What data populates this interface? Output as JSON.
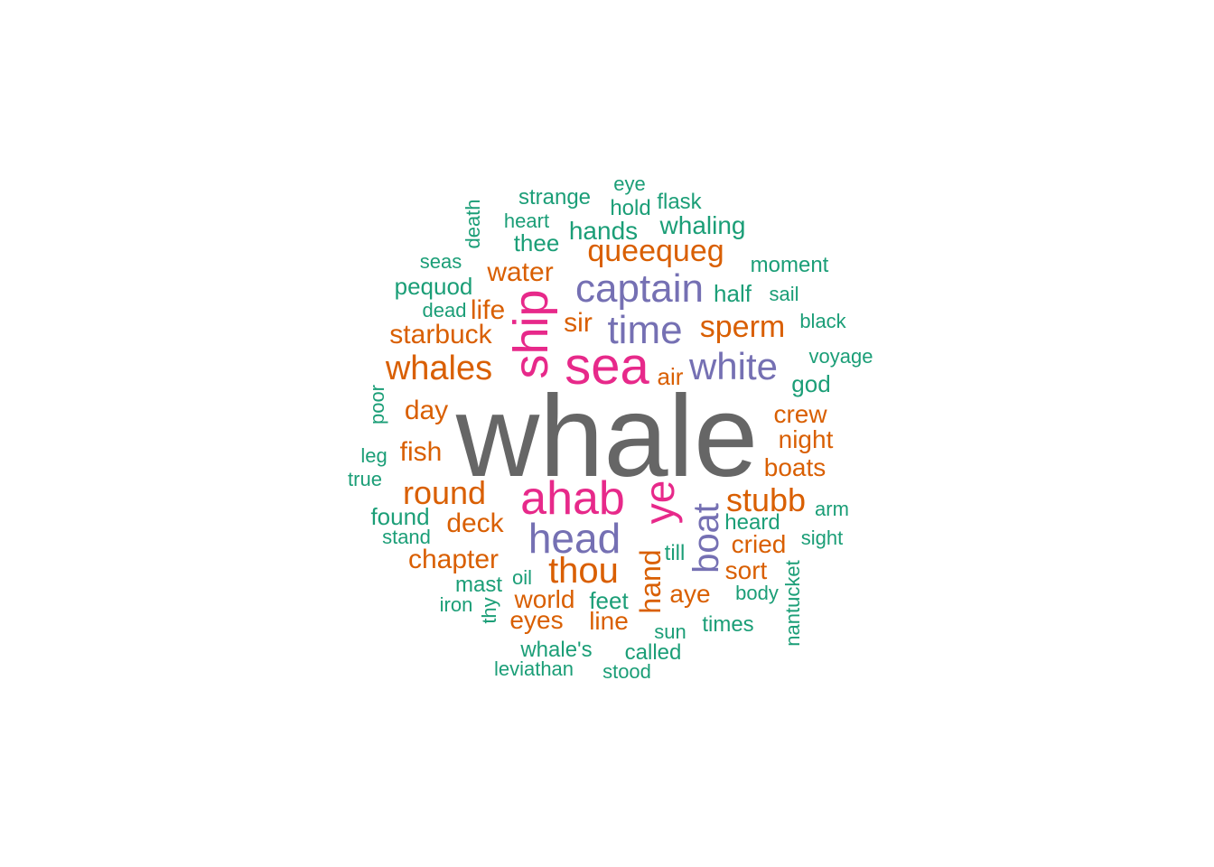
{
  "colors": {
    "c1": "#666666",
    "c2": "#e7298a",
    "c3": "#7570b3",
    "c4": "#d95f02",
    "c5": "#1b9e77"
  },
  "words": [
    {
      "text": "whale",
      "tier": "c1",
      "rotated": false
    },
    {
      "text": "sea",
      "tier": "c2",
      "rotated": false
    },
    {
      "text": "ahab",
      "tier": "c2",
      "rotated": false
    },
    {
      "text": "ship",
      "tier": "c2",
      "rotated": true
    },
    {
      "text": "ye",
      "tier": "c2",
      "rotated": true
    },
    {
      "text": "captain",
      "tier": "c3",
      "rotated": false
    },
    {
      "text": "time",
      "tier": "c3",
      "rotated": false
    },
    {
      "text": "white",
      "tier": "c3",
      "rotated": false
    },
    {
      "text": "head",
      "tier": "c3",
      "rotated": false
    },
    {
      "text": "boat",
      "tier": "c3",
      "rotated": true
    },
    {
      "text": "queequeg",
      "tier": "c4",
      "rotated": false
    },
    {
      "text": "water",
      "tier": "c4",
      "rotated": false
    },
    {
      "text": "sperm",
      "tier": "c4",
      "rotated": false
    },
    {
      "text": "life",
      "tier": "c4",
      "rotated": false
    },
    {
      "text": "starbuck",
      "tier": "c4",
      "rotated": false
    },
    {
      "text": "sir",
      "tier": "c4",
      "rotated": false
    },
    {
      "text": "whales",
      "tier": "c4",
      "rotated": false
    },
    {
      "text": "air",
      "tier": "c4",
      "rotated": false
    },
    {
      "text": "day",
      "tier": "c4",
      "rotated": false
    },
    {
      "text": "crew",
      "tier": "c4",
      "rotated": false
    },
    {
      "text": "night",
      "tier": "c4",
      "rotated": false
    },
    {
      "text": "fish",
      "tier": "c4",
      "rotated": false
    },
    {
      "text": "boats",
      "tier": "c4",
      "rotated": false
    },
    {
      "text": "round",
      "tier": "c4",
      "rotated": false
    },
    {
      "text": "stubb",
      "tier": "c4",
      "rotated": false
    },
    {
      "text": "deck",
      "tier": "c4",
      "rotated": false
    },
    {
      "text": "cried",
      "tier": "c4",
      "rotated": false
    },
    {
      "text": "chapter",
      "tier": "c4",
      "rotated": false
    },
    {
      "text": "thou",
      "tier": "c4",
      "rotated": false
    },
    {
      "text": "sort",
      "tier": "c4",
      "rotated": false
    },
    {
      "text": "hand",
      "tier": "c4",
      "rotated": true
    },
    {
      "text": "aye",
      "tier": "c4",
      "rotated": false
    },
    {
      "text": "world",
      "tier": "c4",
      "rotated": false
    },
    {
      "text": "eyes",
      "tier": "c4",
      "rotated": false
    },
    {
      "text": "line",
      "tier": "c4",
      "rotated": false
    },
    {
      "text": "eye",
      "tier": "c5",
      "rotated": false
    },
    {
      "text": "strange",
      "tier": "c5",
      "rotated": false
    },
    {
      "text": "flask",
      "tier": "c5",
      "rotated": false
    },
    {
      "text": "hold",
      "tier": "c5",
      "rotated": false
    },
    {
      "text": "death",
      "tier": "c5",
      "rotated": true
    },
    {
      "text": "heart",
      "tier": "c5",
      "rotated": false
    },
    {
      "text": "whaling",
      "tier": "c5",
      "rotated": false
    },
    {
      "text": "hands",
      "tier": "c5",
      "rotated": false
    },
    {
      "text": "thee",
      "tier": "c5",
      "rotated": false
    },
    {
      "text": "seas",
      "tier": "c5",
      "rotated": false
    },
    {
      "text": "moment",
      "tier": "c5",
      "rotated": false
    },
    {
      "text": "pequod",
      "tier": "c5",
      "rotated": false
    },
    {
      "text": "half",
      "tier": "c5",
      "rotated": false
    },
    {
      "text": "sail",
      "tier": "c5",
      "rotated": false
    },
    {
      "text": "dead",
      "tier": "c5",
      "rotated": false
    },
    {
      "text": "black",
      "tier": "c5",
      "rotated": false
    },
    {
      "text": "voyage",
      "tier": "c5",
      "rotated": false
    },
    {
      "text": "god",
      "tier": "c5",
      "rotated": false
    },
    {
      "text": "poor",
      "tier": "c5",
      "rotated": true
    },
    {
      "text": "leg",
      "tier": "c5",
      "rotated": false
    },
    {
      "text": "true",
      "tier": "c5",
      "rotated": false
    },
    {
      "text": "arm",
      "tier": "c5",
      "rotated": false
    },
    {
      "text": "found",
      "tier": "c5",
      "rotated": false
    },
    {
      "text": "heard",
      "tier": "c5",
      "rotated": false
    },
    {
      "text": "stand",
      "tier": "c5",
      "rotated": false
    },
    {
      "text": "sight",
      "tier": "c5",
      "rotated": false
    },
    {
      "text": "till",
      "tier": "c5",
      "rotated": false
    },
    {
      "text": "oil",
      "tier": "c5",
      "rotated": false
    },
    {
      "text": "mast",
      "tier": "c5",
      "rotated": false
    },
    {
      "text": "nantucket",
      "tier": "c5",
      "rotated": true
    },
    {
      "text": "iron",
      "tier": "c5",
      "rotated": false
    },
    {
      "text": "feet",
      "tier": "c5",
      "rotated": false
    },
    {
      "text": "body",
      "tier": "c5",
      "rotated": false
    },
    {
      "text": "thy",
      "tier": "c5",
      "rotated": true
    },
    {
      "text": "times",
      "tier": "c5",
      "rotated": false
    },
    {
      "text": "sun",
      "tier": "c5",
      "rotated": false
    },
    {
      "text": "whale's",
      "tier": "c5",
      "rotated": false
    },
    {
      "text": "called",
      "tier": "c5",
      "rotated": false
    },
    {
      "text": "leviathan",
      "tier": "c5",
      "rotated": false
    },
    {
      "text": "stood",
      "tier": "c5",
      "rotated": false
    }
  ]
}
